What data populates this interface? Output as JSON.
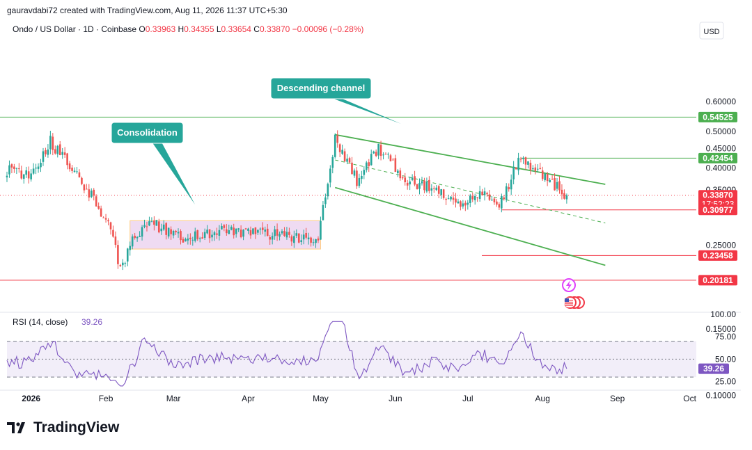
{
  "header": {
    "credit": "gauravdabi72 created with TradingView.com, Aug 11, 2026 11:37 UTC+5:30"
  },
  "symbol": {
    "title": "Ondo / US Dollar · 1D · Coinbase",
    "ohlc": [
      {
        "k": "O",
        "v": "0.33963"
      },
      {
        "k": "H",
        "v": "0.34355"
      },
      {
        "k": "L",
        "v": "0.33654"
      },
      {
        "k": "C",
        "v": "0.33870"
      }
    ],
    "change": "−0.00096 (−0.28%)"
  },
  "currency": "USD",
  "brand": {
    "name": "TradingView"
  },
  "colors": {
    "up": "#26a69a",
    "down": "#ef5350",
    "accent_green": "#4caf50",
    "accent_red": "#f23645",
    "callout": "#26a69a",
    "rsi": "#7e57c2",
    "consol_fill": "#e1bee7"
  },
  "chart_data": [
    {
      "type": "candlestick",
      "title": "Ondo / US Dollar · 1D · Coinbase",
      "x_labels": [
        "2026",
        "Feb",
        "Mar",
        "Apr",
        "May",
        "Jun",
        "Jul",
        "Aug",
        "Sep",
        "Oct"
      ],
      "y_ticks": [
        "0.60000",
        "0.50000",
        "0.45000",
        "0.40000",
        "0.35000",
        "0.25000",
        "0.15000",
        "0.10000"
      ],
      "price_scale": "log",
      "ylim": [
        0.09,
        0.66
      ],
      "grid": false,
      "series": [
        {
          "date": "2025-12-22",
          "value": 0.395
        },
        {
          "date": "2026-01-01",
          "value": 0.38
        },
        {
          "date": "2026-01-09",
          "value": 0.47
        },
        {
          "date": "2026-01-16",
          "value": 0.41
        },
        {
          "date": "2026-01-25",
          "value": 0.345
        },
        {
          "date": "2026-02-03",
          "value": 0.275
        },
        {
          "date": "2026-02-07",
          "value": 0.215
        },
        {
          "date": "2026-02-12",
          "value": 0.26
        },
        {
          "date": "2026-02-20",
          "value": 0.285
        },
        {
          "date": "2026-03-05",
          "value": 0.262
        },
        {
          "date": "2026-03-20",
          "value": 0.272
        },
        {
          "date": "2026-04-05",
          "value": 0.27
        },
        {
          "date": "2026-04-20",
          "value": 0.262
        },
        {
          "date": "2026-04-30",
          "value": 0.262
        },
        {
          "date": "2026-05-04",
          "value": 0.37
        },
        {
          "date": "2026-05-07",
          "value": 0.48
        },
        {
          "date": "2026-05-16",
          "value": 0.37
        },
        {
          "date": "2026-05-25",
          "value": 0.45
        },
        {
          "date": "2026-06-06",
          "value": 0.37
        },
        {
          "date": "2026-06-16",
          "value": 0.355
        },
        {
          "date": "2026-06-26",
          "value": 0.32
        },
        {
          "date": "2026-07-08",
          "value": 0.34
        },
        {
          "date": "2026-07-14",
          "value": 0.315
        },
        {
          "date": "2026-07-22",
          "value": 0.42
        },
        {
          "date": "2026-07-30",
          "value": 0.39
        },
        {
          "date": "2026-08-11",
          "value": 0.3387
        }
      ],
      "levels": [
        {
          "value": 0.54525,
          "label": "0.54525",
          "color": "#4caf50"
        },
        {
          "value": 0.42454,
          "label": "0.42454",
          "color": "#4caf50"
        },
        {
          "value": 0.3387,
          "label": "0.33870",
          "sublabel": "17:52:23",
          "color": "#f23645"
        },
        {
          "value": 0.30977,
          "label": "0.30977",
          "color": "#f23645"
        },
        {
          "value": 0.23458,
          "label": "0.23458",
          "color": "#f23645"
        },
        {
          "value": 0.20181,
          "label": "0.20181",
          "color": "#f23645"
        }
      ],
      "annotations": [
        {
          "text": "Consolidation"
        },
        {
          "text": "Descending channel"
        }
      ]
    },
    {
      "type": "line",
      "title": "RSI (14, close)",
      "current": "39.26",
      "y_ticks": [
        "100.00",
        "75.00",
        "50.00",
        "25.00"
      ],
      "ylim": [
        25,
        100
      ],
      "bands": [
        30,
        50,
        70
      ]
    }
  ]
}
